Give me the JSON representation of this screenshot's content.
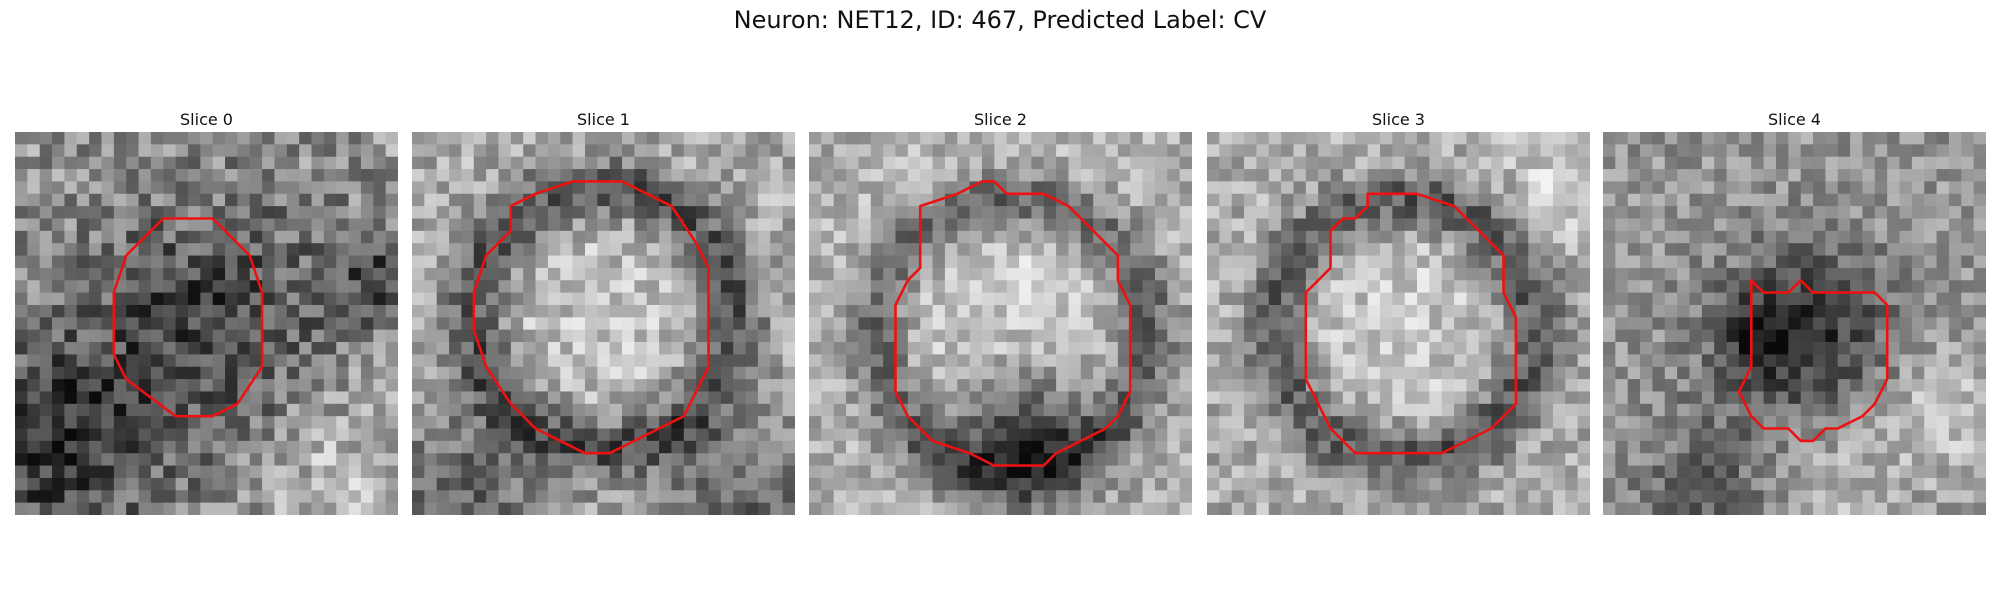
{
  "figure": {
    "title": "Neuron: NET12, ID: 467, Predicted Label: CV"
  },
  "panels": [
    {
      "title": "Slice 0"
    },
    {
      "title": "Slice 1"
    },
    {
      "title": "Slice 2"
    },
    {
      "title": "Slice 3"
    },
    {
      "title": "Slice 4"
    }
  ],
  "colors": {
    "contour": "#ee1111",
    "background": "#ffffff"
  }
}
